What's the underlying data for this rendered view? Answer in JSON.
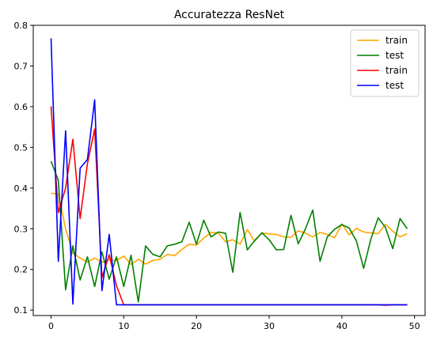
{
  "chart_data": {
    "type": "line",
    "title": "Accuratezza ResNet",
    "xlabel": "",
    "ylabel": "",
    "xlim": [
      -2.45,
      51.45
    ],
    "ylim": [
      0.0867,
      0.8
    ],
    "x_ticks": [
      0,
      10,
      20,
      30,
      40,
      50
    ],
    "y_ticks": [
      0.1,
      0.2,
      0.3,
      0.4,
      0.5,
      0.6,
      0.7,
      0.8
    ],
    "grid": false,
    "legend_position": "top-right",
    "series": [
      {
        "name": "train",
        "color": "#ffa500",
        "x": [
          0,
          1,
          2,
          3,
          4,
          5,
          6,
          7,
          8,
          9,
          10,
          11,
          12,
          13,
          14,
          15,
          16,
          17,
          18,
          19,
          20,
          21,
          22,
          23,
          24,
          25,
          26,
          27,
          28,
          29,
          30,
          31,
          32,
          33,
          34,
          35,
          36,
          37,
          38,
          39,
          40,
          41,
          42,
          43,
          44,
          45,
          46,
          47,
          48,
          49
        ],
        "values": [
          0.387,
          0.386,
          0.3,
          0.24,
          0.228,
          0.218,
          0.228,
          0.218,
          0.224,
          0.222,
          0.233,
          0.212,
          0.225,
          0.213,
          0.222,
          0.225,
          0.237,
          0.234,
          0.249,
          0.262,
          0.26,
          0.277,
          0.291,
          0.29,
          0.268,
          0.273,
          0.262,
          0.298,
          0.269,
          0.29,
          0.287,
          0.286,
          0.28,
          0.279,
          0.295,
          0.289,
          0.28,
          0.291,
          0.286,
          0.278,
          0.312,
          0.285,
          0.301,
          0.292,
          0.29,
          0.288,
          0.311,
          0.294,
          0.28,
          0.288
        ]
      },
      {
        "name": "test",
        "color": "#008000",
        "x": [
          0,
          1,
          2,
          3,
          4,
          5,
          6,
          7,
          8,
          9,
          10,
          11,
          12,
          13,
          14,
          15,
          16,
          17,
          18,
          19,
          20,
          21,
          22,
          23,
          24,
          25,
          26,
          27,
          28,
          29,
          30,
          31,
          32,
          33,
          34,
          35,
          36,
          37,
          38,
          39,
          40,
          41,
          42,
          43,
          44,
          45,
          46,
          47,
          48,
          49
        ],
        "values": [
          0.466,
          0.419,
          0.15,
          0.258,
          0.174,
          0.231,
          0.158,
          0.243,
          0.176,
          0.231,
          0.158,
          0.235,
          0.12,
          0.258,
          0.237,
          0.231,
          0.258,
          0.262,
          0.268,
          0.316,
          0.262,
          0.321,
          0.28,
          0.292,
          0.289,
          0.193,
          0.34,
          0.248,
          0.271,
          0.29,
          0.273,
          0.248,
          0.249,
          0.333,
          0.263,
          0.3,
          0.346,
          0.22,
          0.28,
          0.299,
          0.31,
          0.302,
          0.27,
          0.203,
          0.275,
          0.327,
          0.303,
          0.251,
          0.325,
          0.3
        ]
      },
      {
        "name": "train",
        "color": "#ff0000",
        "x": [
          0,
          1,
          2,
          3,
          4,
          5,
          6,
          7,
          8,
          9,
          10,
          11,
          12,
          13,
          14,
          15,
          16,
          17,
          18,
          19,
          20,
          21,
          22,
          23,
          24,
          25,
          26,
          27,
          28,
          29,
          30,
          31,
          32,
          33,
          34,
          35,
          36,
          37,
          38,
          39,
          40,
          41,
          42,
          43,
          44,
          45,
          46,
          47,
          48,
          49
        ],
        "values": [
          0.601,
          0.34,
          0.4,
          0.52,
          0.325,
          0.46,
          0.545,
          0.18,
          0.236,
          0.16,
          0.113,
          0.113,
          0.113,
          0.113,
          0.113,
          0.113,
          0.113,
          0.113,
          0.113,
          0.113,
          0.113,
          0.113,
          0.113,
          0.113,
          0.113,
          0.113,
          0.113,
          0.113,
          0.113,
          0.113,
          0.113,
          0.113,
          0.113,
          0.113,
          0.113,
          0.113,
          0.113,
          0.113,
          0.113,
          0.113,
          0.113,
          0.113,
          0.113,
          0.113,
          0.113,
          0.113,
          0.112,
          0.113,
          0.113,
          0.113
        ]
      },
      {
        "name": "test",
        "color": "#0000ff",
        "x": [
          0,
          1,
          2,
          3,
          4,
          5,
          6,
          7,
          8,
          9,
          10,
          11,
          12,
          13,
          14,
          15,
          16,
          17,
          18,
          19,
          20,
          21,
          22,
          23,
          24,
          25,
          26,
          27,
          28,
          29,
          30,
          31,
          32,
          33,
          34,
          35,
          36,
          37,
          38,
          39,
          40,
          41,
          42,
          43,
          44,
          45,
          46,
          47,
          48,
          49
        ],
        "values": [
          0.768,
          0.22,
          0.541,
          0.115,
          0.449,
          0.47,
          0.617,
          0.148,
          0.286,
          0.113,
          0.113,
          0.113,
          0.113,
          0.113,
          0.113,
          0.113,
          0.113,
          0.113,
          0.113,
          0.113,
          0.113,
          0.113,
          0.113,
          0.113,
          0.113,
          0.113,
          0.113,
          0.113,
          0.113,
          0.113,
          0.113,
          0.113,
          0.113,
          0.113,
          0.113,
          0.113,
          0.113,
          0.113,
          0.113,
          0.113,
          0.113,
          0.113,
          0.113,
          0.113,
          0.113,
          0.113,
          0.113,
          0.113,
          0.113,
          0.113
        ]
      }
    ]
  }
}
